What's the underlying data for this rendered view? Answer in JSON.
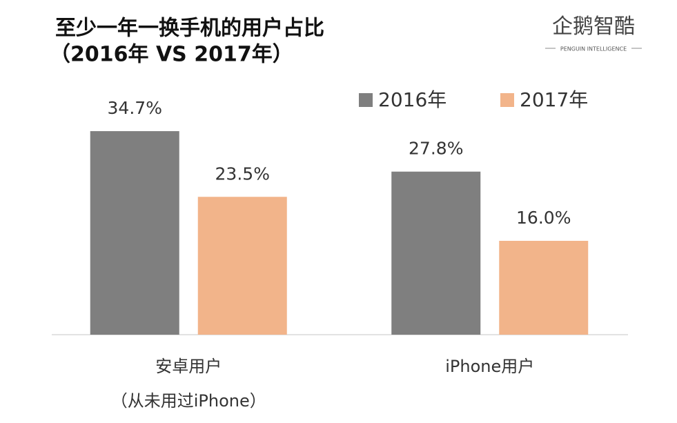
{
  "chart_data": {
    "type": "bar",
    "title": [
      "至少一年一换手机的用户占比",
      "（2016年 VS 2017年）"
    ],
    "logo": {
      "name": "企鹅智酷",
      "subtitle": "PENGUIN INTELLIGENCE"
    },
    "categories": [
      [
        "安卓用户",
        "（从未用过iPhone）"
      ],
      [
        "iPhone用户"
      ]
    ],
    "series": [
      {
        "name": "2016年",
        "color": "#7f7f7f",
        "values": [
          34.7,
          27.8
        ],
        "value_labels": [
          "34.7%",
          "27.8%"
        ]
      },
      {
        "name": "2017年",
        "color": "#f2b48a",
        "values": [
          23.5,
          16.0
        ],
        "value_labels": [
          "23.5%",
          "16.0%"
        ]
      }
    ],
    "ylim": [
      0,
      40
    ],
    "legend": "top-right"
  }
}
